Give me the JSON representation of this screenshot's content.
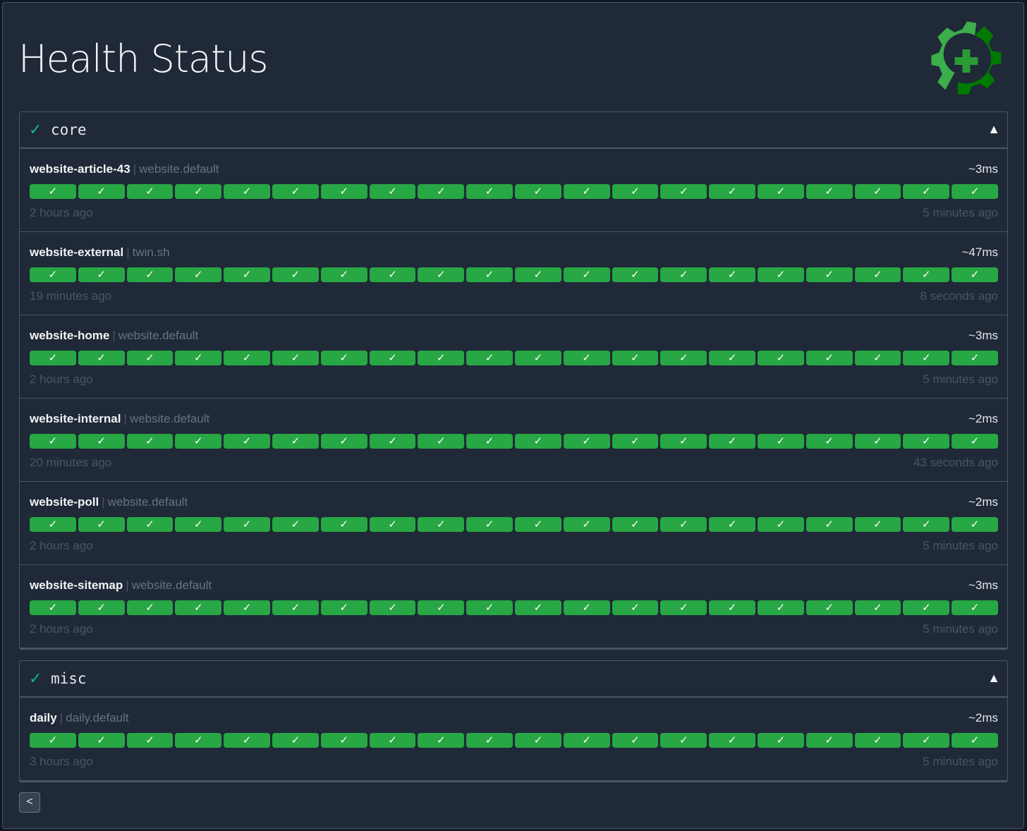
{
  "page_title": "Health Status",
  "logo_icon": "gear-health-icon",
  "colors": {
    "success": "#28a745",
    "group_check": "#10b981",
    "background": "#1f2937"
  },
  "bars_per_endpoint": 20,
  "groups": [
    {
      "name": "core",
      "status_icon": "✓",
      "toggle_icon": "▲",
      "endpoints": [
        {
          "name": "website-article-43",
          "group": "website.default",
          "response_time": "~3ms",
          "oldest": "2 hours ago",
          "newest": "5 minutes ago"
        },
        {
          "name": "website-external",
          "group": "twin.sh",
          "response_time": "~47ms",
          "oldest": "19 minutes ago",
          "newest": "8 seconds ago"
        },
        {
          "name": "website-home",
          "group": "website.default",
          "response_time": "~3ms",
          "oldest": "2 hours ago",
          "newest": "5 minutes ago"
        },
        {
          "name": "website-internal",
          "group": "website.default",
          "response_time": "~2ms",
          "oldest": "20 minutes ago",
          "newest": "43 seconds ago"
        },
        {
          "name": "website-poll",
          "group": "website.default",
          "response_time": "~2ms",
          "oldest": "2 hours ago",
          "newest": "5 minutes ago"
        },
        {
          "name": "website-sitemap",
          "group": "website.default",
          "response_time": "~3ms",
          "oldest": "2 hours ago",
          "newest": "5 minutes ago"
        }
      ]
    },
    {
      "name": "misc",
      "status_icon": "✓",
      "toggle_icon": "▲",
      "endpoints": [
        {
          "name": "daily",
          "group": "daily.default",
          "response_time": "~2ms",
          "oldest": "3 hours ago",
          "newest": "5 minutes ago"
        }
      ]
    }
  ],
  "bar_symbol": "✓",
  "pagination": {
    "previous_label": "<"
  }
}
